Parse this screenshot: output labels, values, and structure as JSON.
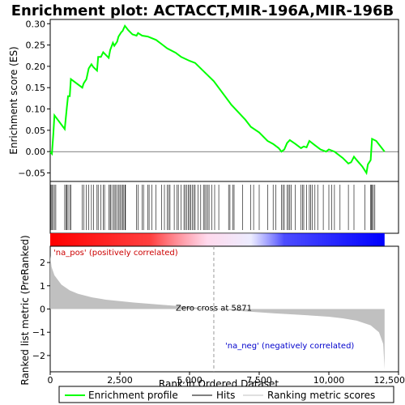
{
  "chart_data": {
    "title": "Enrichment plot: ACTACCT,MIR-196A,MIR-196B",
    "type": "line",
    "es_panel": {
      "ylabel": "Enrichment score (ES)",
      "ylim": [
        -0.07,
        0.31
      ],
      "yticks": [
        -0.05,
        0.0,
        0.05,
        0.1,
        0.15,
        0.2,
        0.25,
        0.3
      ],
      "ytick_labels": [
        "−0.05",
        "0.00",
        "0.05",
        "0.10",
        "0.15",
        "0.20",
        "0.25",
        "0.30"
      ],
      "series": [
        {
          "name": "Enrichment profile",
          "color": "#00ff00",
          "points": [
            [
              0,
              0
            ],
            [
              60,
              -0.005
            ],
            [
              110,
              0.04
            ],
            [
              150,
              0.085
            ],
            [
              520,
              0.053
            ],
            [
              560,
              0.08
            ],
            [
              600,
              0.105
            ],
            [
              640,
              0.13
            ],
            [
              700,
              0.13
            ],
            [
              740,
              0.17
            ],
            [
              1150,
              0.15
            ],
            [
              1200,
              0.16
            ],
            [
              1300,
              0.17
            ],
            [
              1380,
              0.195
            ],
            [
              1480,
              0.205
            ],
            [
              1550,
              0.198
            ],
            [
              1680,
              0.19
            ],
            [
              1720,
              0.222
            ],
            [
              1820,
              0.222
            ],
            [
              1900,
              0.233
            ],
            [
              2100,
              0.22
            ],
            [
              2150,
              0.238
            ],
            [
              2250,
              0.255
            ],
            [
              2300,
              0.248
            ],
            [
              2400,
              0.258
            ],
            [
              2450,
              0.27
            ],
            [
              2550,
              0.28
            ],
            [
              2600,
              0.283
            ],
            [
              2680,
              0.295
            ],
            [
              2800,
              0.285
            ],
            [
              2950,
              0.275
            ],
            [
              3100,
              0.272
            ],
            [
              3150,
              0.278
            ],
            [
              3300,
              0.272
            ],
            [
              3500,
              0.27
            ],
            [
              3800,
              0.262
            ],
            [
              4000,
              0.252
            ],
            [
              4200,
              0.242
            ],
            [
              4500,
              0.232
            ],
            [
              4700,
              0.222
            ],
            [
              5000,
              0.213
            ],
            [
              5200,
              0.208
            ],
            [
              5871,
              0.165
            ],
            [
              6500,
              0.11
            ],
            [
              7000,
              0.075
            ],
            [
              7200,
              0.058
            ],
            [
              7500,
              0.045
            ],
            [
              7800,
              0.025
            ],
            [
              8000,
              0.018
            ],
            [
              8200,
              0.008
            ],
            [
              8300,
              0.0
            ],
            [
              8400,
              0.005
            ],
            [
              8500,
              0.02
            ],
            [
              8600,
              0.027
            ],
            [
              8800,
              0.018
            ],
            [
              9000,
              0.008
            ],
            [
              9100,
              0.012
            ],
            [
              9200,
              0.01
            ],
            [
              9300,
              0.025
            ],
            [
              9500,
              0.015
            ],
            [
              9700,
              0.005
            ],
            [
              9900,
              0.0
            ],
            [
              10000,
              0.005
            ],
            [
              10200,
              0.0
            ],
            [
              10500,
              -0.015
            ],
            [
              10700,
              -0.028
            ],
            [
              10800,
              -0.025
            ],
            [
              10900,
              -0.012
            ],
            [
              11000,
              -0.02
            ],
            [
              11200,
              -0.035
            ],
            [
              11350,
              -0.05
            ],
            [
              11400,
              -0.03
            ],
            [
              11500,
              -0.02
            ],
            [
              11550,
              0.03
            ],
            [
              11700,
              0.025
            ],
            [
              12000,
              0.0
            ]
          ]
        }
      ]
    },
    "hits": [
      30,
      60,
      100,
      150,
      200,
      520,
      560,
      600,
      640,
      700,
      740,
      1150,
      1200,
      1300,
      1380,
      1480,
      1550,
      1680,
      1720,
      1820,
      1900,
      1950,
      2100,
      2150,
      2180,
      2250,
      2300,
      2350,
      2400,
      2450,
      2500,
      2550,
      2600,
      2620,
      2680,
      2700,
      3100,
      3150,
      3300,
      3350,
      3500,
      3550,
      3650,
      3800,
      4000,
      4100,
      4200,
      4250,
      4300,
      4450,
      4550,
      4600,
      4700,
      4800,
      4850,
      4900,
      4950,
      5000,
      5050,
      5100,
      5150,
      5200,
      5300,
      5400,
      5500,
      5550,
      5600,
      5650,
      5700,
      5800,
      5900,
      6050,
      6400,
      6450,
      6550,
      6600,
      6900,
      7200,
      7300,
      7500,
      7800,
      8000,
      8100,
      8300,
      8350,
      8400,
      8500,
      8550,
      8600,
      8650,
      8800,
      9000,
      9050,
      9100,
      9200,
      9300,
      9350,
      9400,
      9500,
      9600,
      9800,
      10000,
      10100,
      10200,
      10400,
      10700,
      10900,
      11300,
      11500,
      11520,
      11550,
      11600,
      11650
    ],
    "rank_panel": {
      "ylabel": "Ranked list metric (PreRanked)",
      "ylim": [
        -2.7,
        2.7
      ],
      "yticks": [
        -2,
        -1,
        0,
        1,
        2
      ],
      "ytick_labels": [
        "−2",
        "−1",
        "0",
        "1",
        "2"
      ],
      "metric_points": [
        [
          0,
          2.3
        ],
        [
          50,
          1.8
        ],
        [
          150,
          1.45
        ],
        [
          400,
          1.05
        ],
        [
          700,
          0.8
        ],
        [
          1000,
          0.65
        ],
        [
          1500,
          0.5
        ],
        [
          2000,
          0.4
        ],
        [
          3000,
          0.28
        ],
        [
          4000,
          0.18
        ],
        [
          5000,
          0.09
        ],
        [
          5871,
          0.0
        ],
        [
          7000,
          -0.1
        ],
        [
          8000,
          -0.18
        ],
        [
          9000,
          -0.25
        ],
        [
          10000,
          -0.33
        ],
        [
          10500,
          -0.4
        ],
        [
          11000,
          -0.5
        ],
        [
          11500,
          -0.7
        ],
        [
          11800,
          -1.0
        ],
        [
          11950,
          -1.5
        ],
        [
          12000,
          -2.6
        ]
      ],
      "pos_label": "'na_pos' (positively correlated)",
      "neg_label": "'na_neg' (negatively correlated)",
      "zero_cross_label": "Zero cross at 5871",
      "zero_cross": 5871
    },
    "xlabel": "Rank in Ordered Dataset",
    "xlim": [
      0,
      12500
    ],
    "xticks": [
      0,
      2500,
      5000,
      7500,
      10000,
      12500
    ],
    "xtick_labels": [
      "0",
      "2,500",
      "5,000",
      "7,500",
      "10,000",
      "12,500"
    ],
    "n_genes": 12000,
    "legend": {
      "placement": "bottom",
      "entries": [
        {
          "label": "Enrichment profile",
          "color": "#00ff00"
        },
        {
          "label": "Hits",
          "color": "#000000"
        },
        {
          "label": "Ranking metric scores",
          "color": "#c0c0c0"
        }
      ]
    },
    "colors": {
      "es_line": "#00ff00",
      "pos_band": "#ff0000",
      "neg_band": "#0000ff",
      "metric_fill": "#c0c0c0",
      "pos_text": "#cc0000",
      "neg_text": "#0000cc"
    }
  }
}
